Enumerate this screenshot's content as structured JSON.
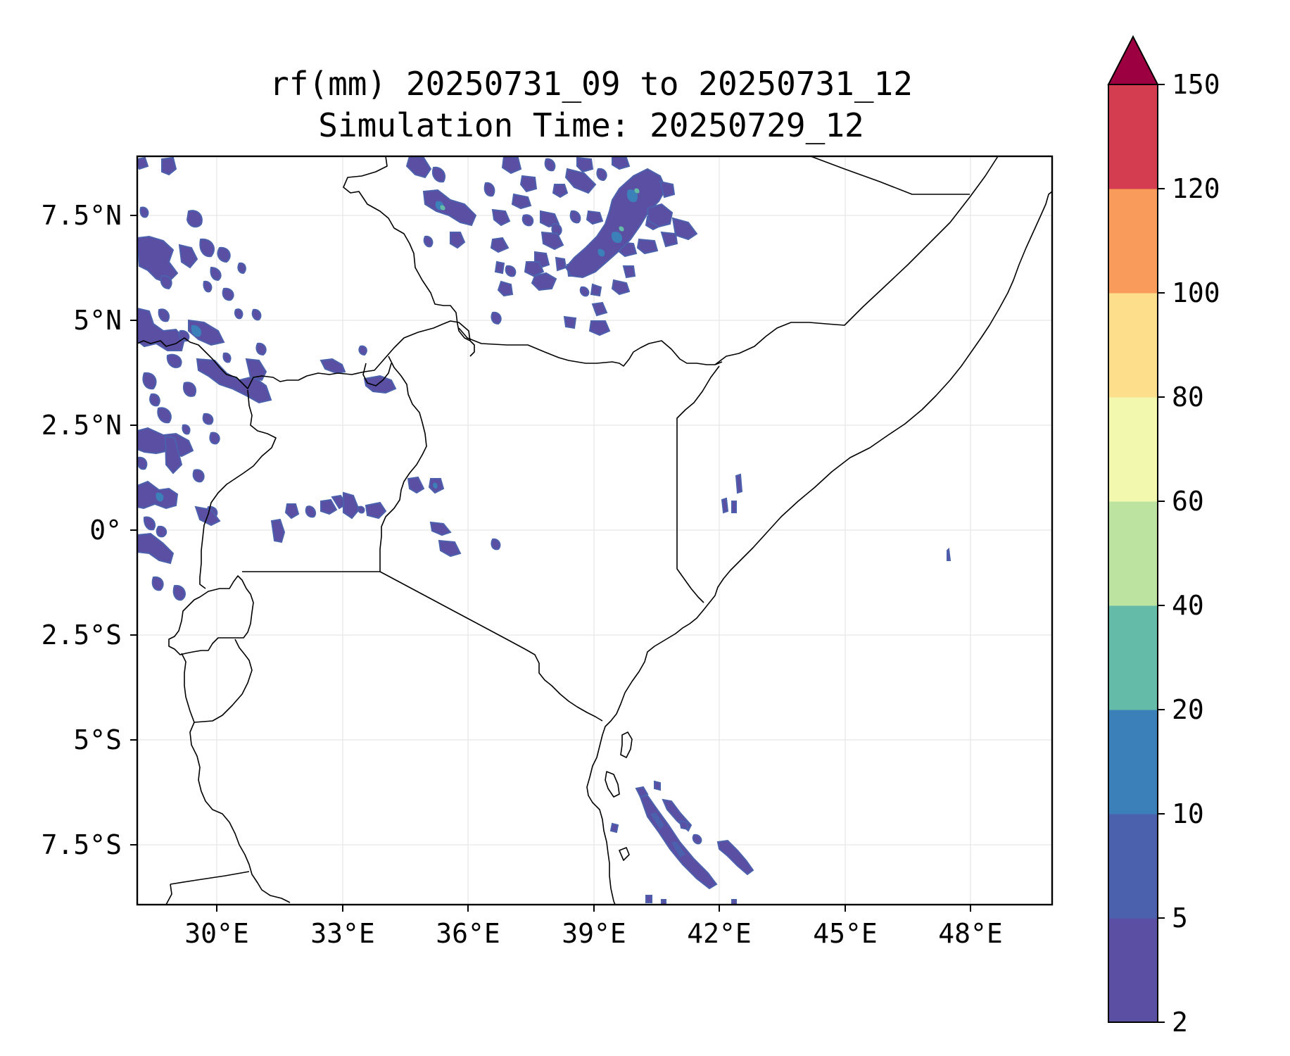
{
  "title": {
    "line1": "rf(mm) 20250731_09 to 20250731_12",
    "line2": "Simulation Time: 20250729_12"
  },
  "map": {
    "lon_range": [
      26.9,
      48.7
    ],
    "lat_range": [
      -8.9,
      8.9
    ],
    "x_ticks": [
      "30°E",
      "33°E",
      "36°E",
      "39°E",
      "42°E",
      "45°E",
      "48°E"
    ],
    "y_ticks": [
      "7.5°N",
      "5°N",
      "2.5°N",
      "0°",
      "2.5°S",
      "5°S",
      "7.5°S"
    ],
    "grid": true
  },
  "colorbar": {
    "levels": [
      "2",
      "5",
      "10",
      "20",
      "40",
      "60",
      "80",
      "100",
      "120",
      "150"
    ],
    "colors": [
      "#5a4fa2",
      "#4c61ad",
      "#3c80b9",
      "#64bba8",
      "#bde3a0",
      "#f2f8ad",
      "#fcde8b",
      "#f99b5b",
      "#d43d4f",
      "#9d0041"
    ],
    "extend": "max"
  },
  "rain_colors": {
    "light": "#5a4fa2",
    "low": "#4c61ad",
    "medium": "#3c80b9",
    "high": "#64bba8"
  }
}
